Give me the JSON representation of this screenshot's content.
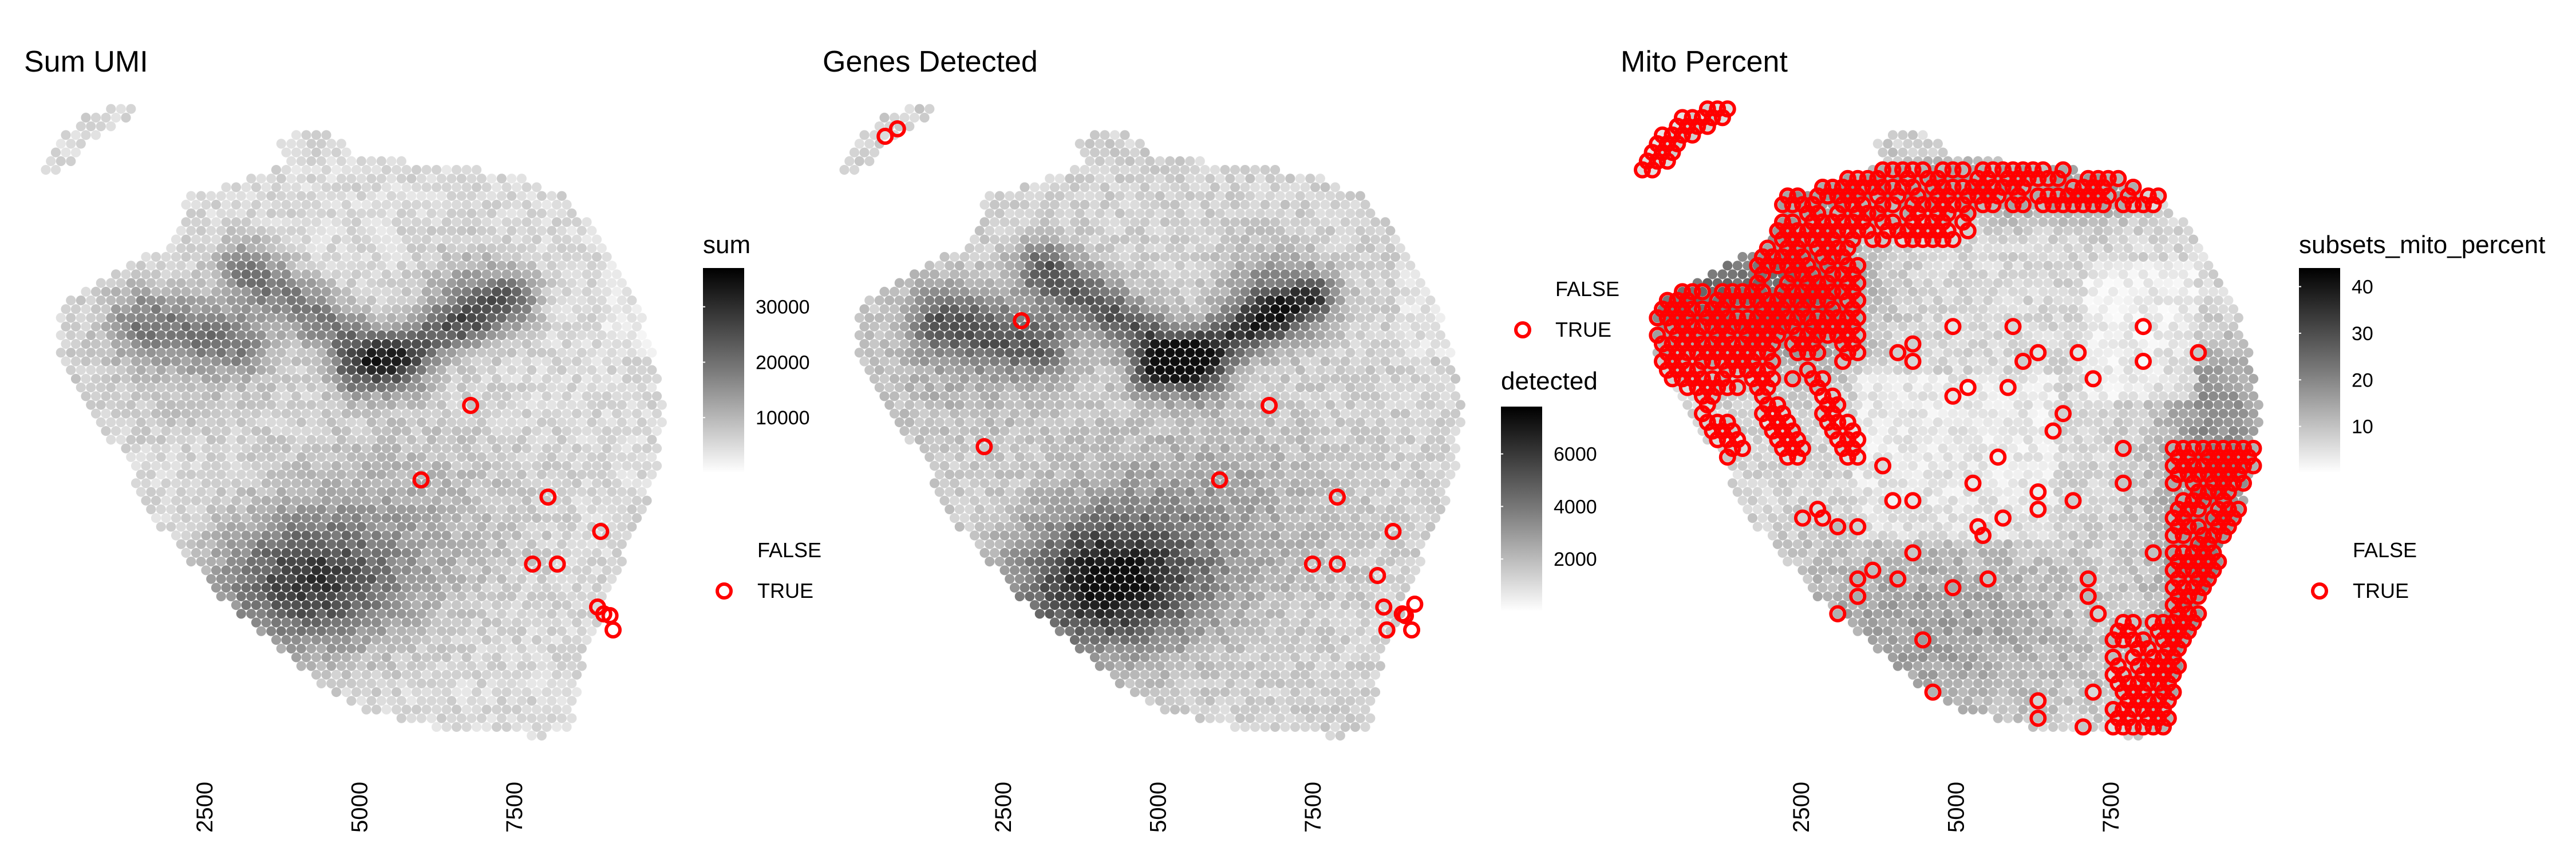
{
  "chart_data": [
    {
      "type": "scatter",
      "title": "Sum UMI",
      "x_ticks": [
        2500,
        5000,
        7500
      ],
      "xlim": [
        -150,
        10200
      ],
      "color_legend": {
        "title": "sum",
        "min": 0,
        "max": 37000,
        "ticks": [
          10000,
          20000,
          30000
        ],
        "tick_labels": [
          "10000",
          "20000",
          "30000"
        ]
      },
      "outline_legend": {
        "entries": [
          "FALSE",
          "TRUE"
        ],
        "colors": [
          "#00000000",
          "#ff0000"
        ]
      },
      "highlighted_spots_x": [
        6800,
        6000,
        8050,
        8900,
        7800,
        8200,
        8850,
        8950,
        9050,
        9100
      ],
      "highlighted_spots_label": "TRUE",
      "hotspots": [
        [
          4000,
          0.78
        ],
        [
          3900,
          0.6
        ],
        [
          4400,
          0.55
        ],
        [
          5600,
          0.62
        ],
        [
          6300,
          0.5
        ],
        [
          3200,
          0.45
        ]
      ]
    },
    {
      "type": "scatter",
      "title": "Genes Detected",
      "x_ticks": [
        2500,
        5000,
        7500
      ],
      "xlim": [
        -150,
        10200
      ],
      "color_legend": {
        "title": "detected",
        "min": 0,
        "max": 7800,
        "ticks": [
          2000,
          4000,
          6000
        ],
        "tick_labels": [
          "2000",
          "4000",
          "6000"
        ]
      },
      "outline_legend": {
        "entries": [
          "FALSE",
          "TRUE"
        ],
        "colors": [
          "#00000000",
          "#ff0000"
        ]
      },
      "highlighted_spots_x": [
        600,
        800,
        2800,
        2200,
        6800,
        6000,
        7900,
        8800,
        7500,
        7900,
        8550,
        8650,
        8950,
        9000,
        9100,
        8700,
        9150
      ],
      "highlighted_spots_label": "TRUE"
    },
    {
      "type": "scatter",
      "title": "Mito Percent",
      "x_ticks": [
        2500,
        5000,
        7500
      ],
      "xlim": [
        -150,
        10200
      ],
      "color_legend": {
        "title": "subsets_mito_percent",
        "min": 0,
        "max": 44,
        "ticks": [
          10,
          20,
          30,
          40
        ],
        "tick_labels": [
          "10",
          "20",
          "30",
          "40"
        ]
      },
      "outline_legend": {
        "entries": [
          "FALSE",
          "TRUE"
        ],
        "colors": [
          "#00000000",
          "#ff0000"
        ]
      },
      "highlighted_spots_label": "TRUE",
      "highlighted_regions": [
        "upper-left lobe",
        "upper edge",
        "left lobe",
        "right edge",
        "lower-right edge"
      ]
    }
  ]
}
